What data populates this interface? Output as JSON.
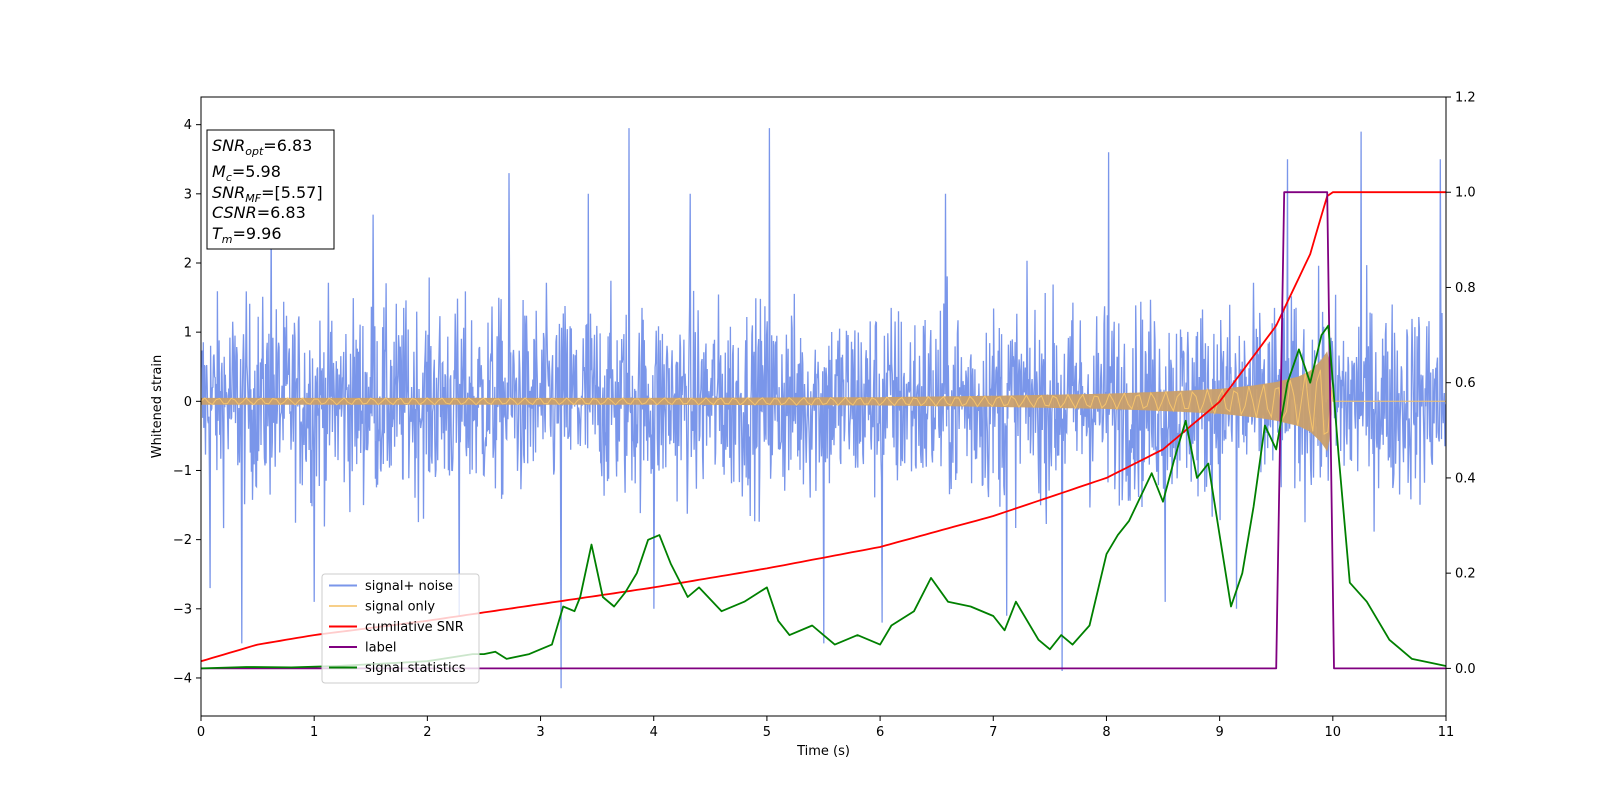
{
  "chart_data": {
    "type": "line",
    "xlabel": "Time (s)",
    "ylabel": "Whitened strain",
    "xlim": [
      0,
      11
    ],
    "ylim": [
      -4.55,
      4.4
    ],
    "ylim_right": [
      -0.1,
      1.2
    ],
    "x_ticks": [
      0,
      1,
      2,
      3,
      4,
      5,
      6,
      7,
      8,
      9,
      10,
      11
    ],
    "x_tick_labels": [
      "0",
      "1",
      "2",
      "3",
      "4",
      "5",
      "6",
      "7",
      "8",
      "9",
      "10",
      "11"
    ],
    "y_ticks": [
      -4,
      -3,
      -2,
      -1,
      0,
      1,
      2,
      3,
      4
    ],
    "y_tick_labels": [
      "−4",
      "−3",
      "−2",
      "−1",
      "0",
      "1",
      "2",
      "3",
      "4"
    ],
    "y2_ticks": [
      0.0,
      0.2,
      0.4,
      0.6,
      0.8,
      1.0,
      1.2
    ],
    "y2_tick_labels": [
      "0.0",
      "0.2",
      "0.4",
      "0.6",
      "0.8",
      "1.0",
      "1.2"
    ],
    "grid": false,
    "legend_position": "lower-left",
    "annotation": {
      "lines": [
        {
          "sym": "SNR",
          "sub": "opt",
          "value": "=6.83"
        },
        {
          "sym": "M",
          "sub": "c",
          "value": "=5.98"
        },
        {
          "sym": "SNR",
          "sub": "MF",
          "value": "=[5.57]"
        },
        {
          "sym": "CSNR",
          "sub": "",
          "value": "=6.83"
        },
        {
          "sym": "T",
          "sub": "m",
          "value": "=9.96"
        }
      ]
    },
    "series": [
      {
        "name": "signal+ noise",
        "axis": "left",
        "color": "#4169e1",
        "style": "noise band",
        "sample_count": 2200,
        "typical_range": [
          -2.6,
          2.6
        ],
        "x": [
          0.08,
          0.36,
          0.62,
          1.0,
          1.52,
          2.28,
          2.72,
          3.18,
          3.42,
          3.78,
          4.0,
          4.32,
          5.02,
          5.5,
          6.02,
          6.58,
          7.12,
          7.61,
          8.02,
          8.52,
          9.15,
          9.6,
          10.25,
          10.95
        ],
        "y": [
          -2.7,
          -3.5,
          2.8,
          -2.9,
          2.7,
          -3.1,
          3.3,
          -4.15,
          3.0,
          3.95,
          -3.0,
          3.0,
          3.95,
          -3.5,
          -3.2,
          3.0,
          -3.1,
          -3.9,
          3.6,
          -2.9,
          -3.0,
          3.5,
          3.9,
          3.5
        ]
      },
      {
        "name": "signal only",
        "axis": "left",
        "color": "#f5c36b",
        "style": "chirp",
        "x": [
          0,
          2,
          4,
          6,
          7,
          8,
          8.5,
          9.0,
          9.3,
          9.5,
          9.7,
          9.8,
          9.9,
          9.96,
          10.0,
          11
        ],
        "amplitude": [
          0.05,
          0.05,
          0.05,
          0.06,
          0.08,
          0.11,
          0.14,
          0.18,
          0.23,
          0.28,
          0.36,
          0.44,
          0.6,
          0.75,
          0.0,
          0.0
        ]
      },
      {
        "name": "cumilative SNR",
        "axis": "right",
        "color": "#ff0000",
        "x": [
          0,
          0.5,
          1,
          2,
          3,
          4,
          5,
          6,
          7,
          8,
          8.5,
          9,
          9.5,
          9.8,
          9.96,
          10.0,
          11
        ],
        "y": [
          0.015,
          0.05,
          0.07,
          0.1,
          0.135,
          0.17,
          0.21,
          0.255,
          0.32,
          0.4,
          0.46,
          0.56,
          0.72,
          0.87,
          1.0,
          1.0,
          1.0
        ]
      },
      {
        "name": "label",
        "axis": "right",
        "color": "#800080",
        "x": [
          0,
          9.5,
          9.57,
          9.95,
          10.01,
          11
        ],
        "y": [
          0,
          0,
          1,
          1,
          0,
          0
        ]
      },
      {
        "name": "signal statistics",
        "axis": "right",
        "color": "#008000",
        "x": [
          0,
          0.4,
          0.8,
          1.2,
          1.6,
          2.0,
          2.4,
          2.5,
          2.6,
          2.7,
          2.9,
          3.0,
          3.1,
          3.2,
          3.3,
          3.35,
          3.45,
          3.55,
          3.65,
          3.75,
          3.85,
          3.95,
          4.05,
          4.15,
          4.3,
          4.4,
          4.6,
          4.8,
          5.0,
          5.1,
          5.2,
          5.4,
          5.6,
          5.8,
          5.9,
          6.0,
          6.1,
          6.3,
          6.45,
          6.6,
          6.8,
          7.0,
          7.1,
          7.2,
          7.4,
          7.5,
          7.6,
          7.7,
          7.85,
          8.0,
          8.1,
          8.2,
          8.3,
          8.4,
          8.5,
          8.6,
          8.7,
          8.8,
          8.9,
          9.0,
          9.1,
          9.2,
          9.3,
          9.4,
          9.5,
          9.6,
          9.7,
          9.8,
          9.9,
          9.96,
          10.05,
          10.15,
          10.3,
          10.5,
          10.7,
          10.9,
          11.0
        ],
        "y": [
          0.0,
          0.003,
          0.002,
          0.005,
          0.01,
          0.015,
          0.03,
          0.03,
          0.035,
          0.02,
          0.03,
          0.04,
          0.05,
          0.13,
          0.12,
          0.15,
          0.26,
          0.15,
          0.13,
          0.16,
          0.2,
          0.27,
          0.28,
          0.22,
          0.15,
          0.17,
          0.12,
          0.14,
          0.17,
          0.1,
          0.07,
          0.09,
          0.05,
          0.07,
          0.06,
          0.05,
          0.09,
          0.12,
          0.19,
          0.14,
          0.13,
          0.11,
          0.08,
          0.14,
          0.06,
          0.04,
          0.07,
          0.05,
          0.09,
          0.24,
          0.28,
          0.31,
          0.36,
          0.41,
          0.35,
          0.44,
          0.52,
          0.4,
          0.43,
          0.28,
          0.13,
          0.2,
          0.34,
          0.51,
          0.46,
          0.6,
          0.67,
          0.6,
          0.7,
          0.72,
          0.45,
          0.18,
          0.14,
          0.06,
          0.02,
          0.01,
          0.005
        ]
      }
    ]
  }
}
